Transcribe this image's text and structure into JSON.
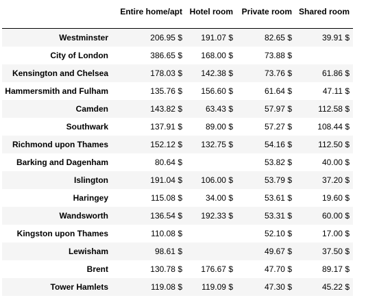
{
  "table": {
    "columns": [
      "Entire home/apt",
      "Hotel room",
      "Private room",
      "Shared room"
    ],
    "rows": [
      {
        "label": "Westminster",
        "values": [
          "206.95 $",
          "191.07 $",
          "82.65 $",
          "39.91 $"
        ]
      },
      {
        "label": "City of London",
        "values": [
          "386.65 $",
          "168.00 $",
          "73.88 $",
          ""
        ]
      },
      {
        "label": "Kensington and Chelsea",
        "values": [
          "178.03 $",
          "142.38 $",
          "73.76 $",
          "61.86 $"
        ]
      },
      {
        "label": "Hammersmith and Fulham",
        "values": [
          "135.76 $",
          "156.60 $",
          "61.64 $",
          "47.11 $"
        ]
      },
      {
        "label": "Camden",
        "values": [
          "143.82 $",
          "63.43 $",
          "57.97 $",
          "112.58 $"
        ]
      },
      {
        "label": "Southwark",
        "values": [
          "137.91 $",
          "89.00 $",
          "57.27 $",
          "108.44 $"
        ]
      },
      {
        "label": "Richmond upon Thames",
        "values": [
          "152.12 $",
          "132.75 $",
          "54.16 $",
          "112.50 $"
        ]
      },
      {
        "label": "Barking and Dagenham",
        "values": [
          "80.64 $",
          "",
          "53.82 $",
          "40.00 $"
        ]
      },
      {
        "label": "Islington",
        "values": [
          "191.04 $",
          "106.00 $",
          "53.79 $",
          "37.20 $"
        ]
      },
      {
        "label": "Haringey",
        "values": [
          "115.08 $",
          "34.00 $",
          "53.61 $",
          "19.60 $"
        ]
      },
      {
        "label": "Wandsworth",
        "values": [
          "136.54 $",
          "192.33 $",
          "53.31 $",
          "60.00 $"
        ]
      },
      {
        "label": "Kingston upon Thames",
        "values": [
          "110.08 $",
          "",
          "52.10 $",
          "17.00 $"
        ]
      },
      {
        "label": "Lewisham",
        "values": [
          "98.61 $",
          "",
          "49.67 $",
          "37.50 $"
        ]
      },
      {
        "label": "Brent",
        "values": [
          "130.78 $",
          "176.67 $",
          "47.70 $",
          "89.17 $"
        ]
      },
      {
        "label": "Tower Hamlets",
        "values": [
          "119.08 $",
          "119.09 $",
          "47.30 $",
          "45.22 $"
        ]
      }
    ]
  }
}
